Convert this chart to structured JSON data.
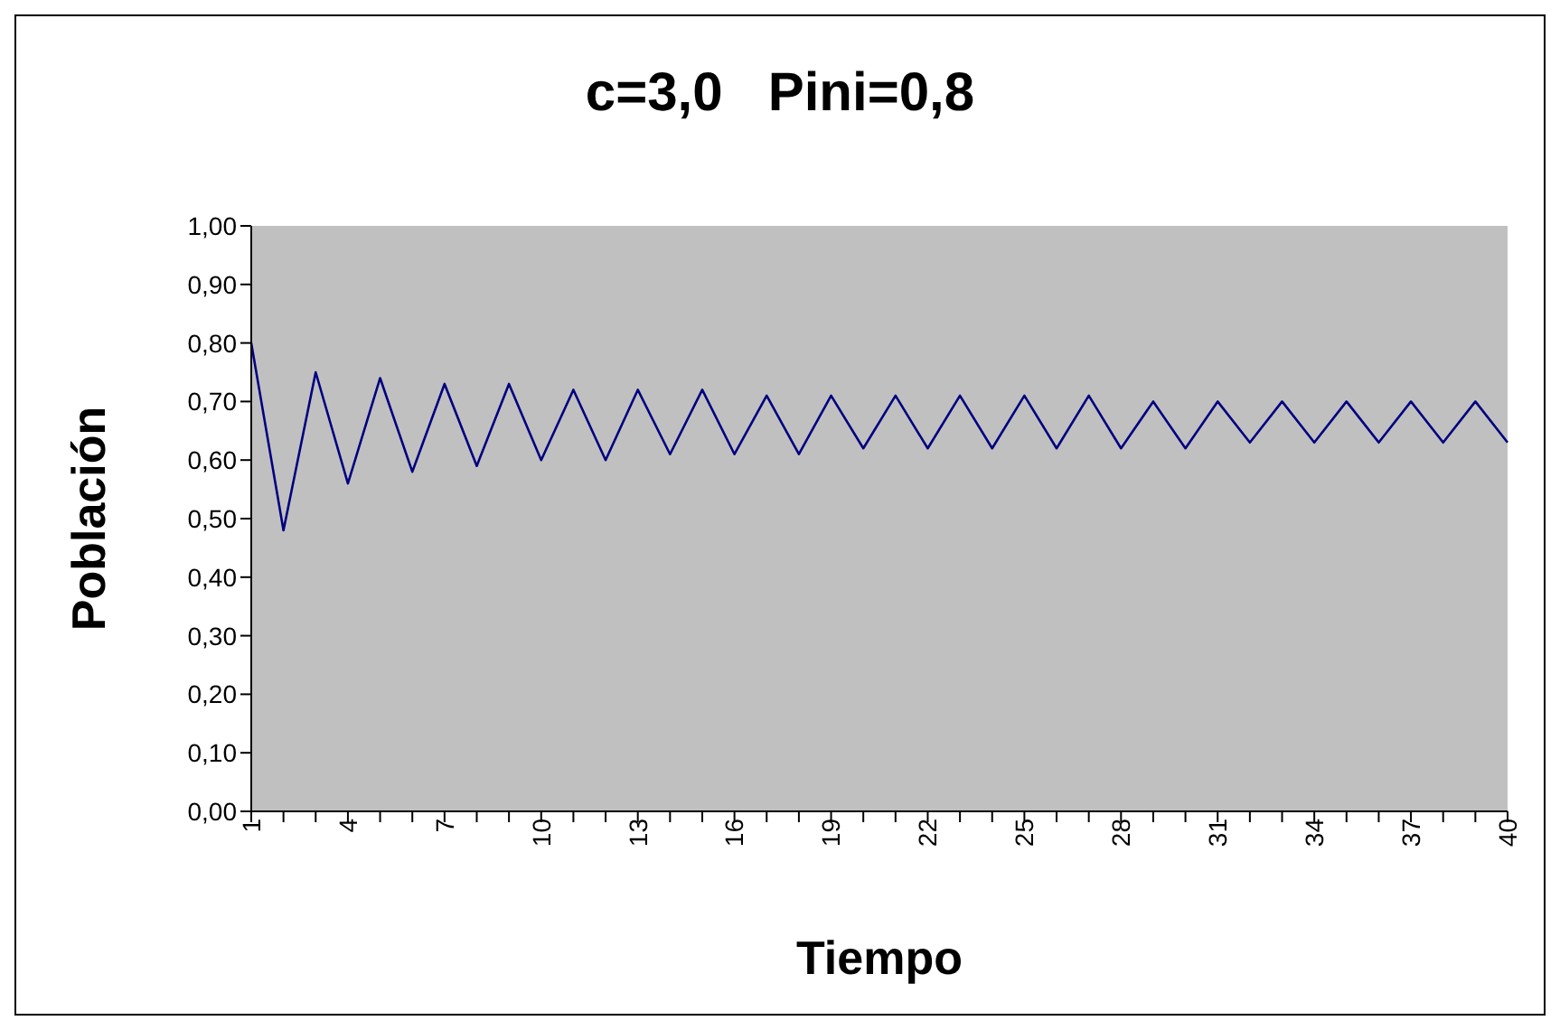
{
  "chart_data": {
    "type": "line",
    "title": "c=3,0   Pini=0,8",
    "xlabel": "Tiempo",
    "ylabel": "Población",
    "categories": [
      "1",
      null,
      null,
      "4",
      null,
      null,
      "7",
      null,
      null,
      "10",
      null,
      null,
      "13",
      null,
      null,
      "16",
      null,
      null,
      "19",
      null,
      null,
      "22",
      null,
      null,
      "25",
      null,
      null,
      "28",
      null,
      null,
      "31",
      null,
      null,
      "34",
      null,
      null,
      "37",
      null,
      null,
      "40"
    ],
    "series": [
      {
        "color": "#000080",
        "values": [
          0.8,
          0.48,
          0.75,
          0.56,
          0.74,
          0.58,
          0.73,
          0.59,
          0.73,
          0.6,
          0.72,
          0.6,
          0.72,
          0.61,
          0.72,
          0.61,
          0.71,
          0.61,
          0.71,
          0.62,
          0.71,
          0.62,
          0.71,
          0.62,
          0.71,
          0.62,
          0.71,
          0.62,
          0.7,
          0.62,
          0.7,
          0.63,
          0.7,
          0.63,
          0.7,
          0.63,
          0.7,
          0.63,
          0.7,
          0.63
        ]
      }
    ],
    "ylim": [
      0,
      1
    ],
    "yticks": [
      {
        "value": 0,
        "label": "0,00"
      },
      {
        "value": 0.1,
        "label": "0,10"
      },
      {
        "value": 0.2,
        "label": "0,20"
      },
      {
        "value": 0.3,
        "label": "0,30"
      },
      {
        "value": 0.4,
        "label": "0,40"
      },
      {
        "value": 0.5,
        "label": "0,50"
      },
      {
        "value": 0.6,
        "label": "0,60"
      },
      {
        "value": 0.7,
        "label": "0,70"
      },
      {
        "value": 0.8,
        "label": "0,80"
      },
      {
        "value": 0.9,
        "label": "0,90"
      },
      {
        "value": 1,
        "label": "1,00"
      }
    ],
    "grid": false,
    "legend": false,
    "marker": "none",
    "line_style": "solid"
  }
}
